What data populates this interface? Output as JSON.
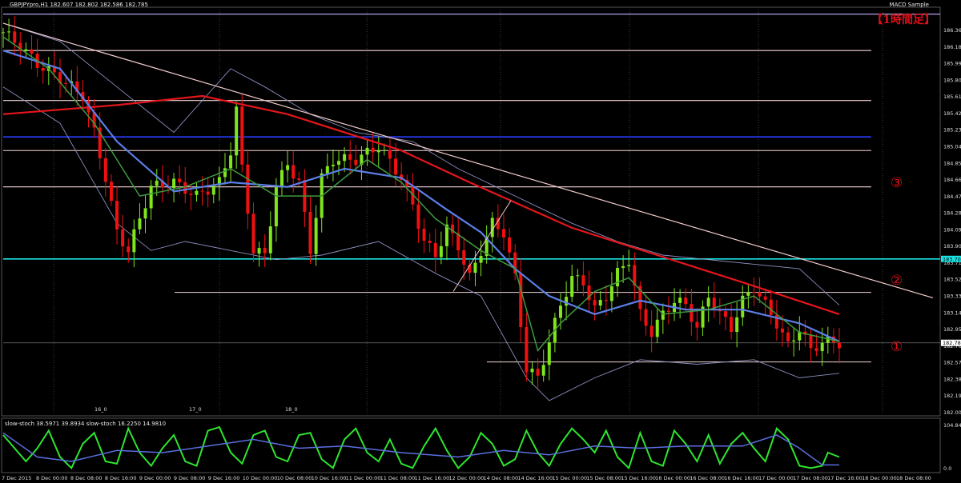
{
  "header": {
    "symbol_info": "GBPJPYpro,H1  182.607 182.802 182.586 182.785",
    "indicator_name": "MACD Sample",
    "timeframe_label": "【1時間足】",
    "stoch_info": "slow-stoch 38.5971 39.8934  slow-stoch 16.2250 14.9810"
  },
  "annotations": {
    "circle_1": "①",
    "circle_2": "②",
    "circle_3": "③"
  },
  "price_axis": {
    "ticks": [
      "186.360",
      "186.180",
      "185.990",
      "185.800",
      "185.610",
      "185.420",
      "185.230",
      "185.040",
      "184.850",
      "184.660",
      "184.470",
      "184.280",
      "184.090",
      "183.900",
      "183.710",
      "183.525",
      "183.335",
      "183.145",
      "182.955",
      "182.765",
      "182.575",
      "182.385",
      "182.195",
      "182.005"
    ],
    "current_price": "182.785",
    "cyan_level_label": "183.708",
    "ylim": [
      182.0,
      186.45
    ]
  },
  "time_axis": {
    "ticks": [
      "7 Dec 2015",
      "8 Dec 00:00",
      "8 Dec 08:00",
      "8 Dec 16:00",
      "9 Dec 00:00",
      "9 Dec 08:00",
      "9 Dec 16:00",
      "10 Dec 00:00",
      "10 Dec 08:00",
      "10 Dec 16:00",
      "11 Dec 00:00",
      "11 Dec 08:00",
      "11 Dec 16:00",
      "12 Dec 00:00",
      "14 Dec 08:00",
      "14 Dec 16:00",
      "15 Dec 00:00",
      "15 Dec 08:00",
      "15 Dec 16:00",
      "16 Dec 00:00",
      "16 Dec 08:00",
      "16 Dec 16:00",
      "17 Dec 00:00",
      "17 Dec 08:00",
      "17 Dec 16:00",
      "18 Dec 00:00",
      "18 Dec 08:00"
    ],
    "session_markers": [
      "16_0",
      "17_0",
      "18_0"
    ]
  },
  "stoch_axis": {
    "ticks": [
      "104.8427",
      "0.0"
    ]
  },
  "chart_data": {
    "type": "line",
    "candles_count": 148,
    "close_path": [
      [
        0,
        186.2
      ],
      [
        3,
        186.05
      ],
      [
        6,
        185.85
      ],
      [
        10,
        185.7
      ],
      [
        14,
        185.5
      ],
      [
        16,
        185.1
      ],
      [
        18,
        184.6
      ],
      [
        20,
        184.0
      ],
      [
        22,
        183.8
      ],
      [
        24,
        184.15
      ],
      [
        26,
        184.5
      ],
      [
        30,
        184.55
      ],
      [
        34,
        184.4
      ],
      [
        38,
        184.55
      ],
      [
        40,
        184.9
      ],
      [
        41,
        185.35
      ],
      [
        42,
        184.7
      ],
      [
        44,
        183.8
      ],
      [
        46,
        183.75
      ],
      [
        48,
        184.5
      ],
      [
        50,
        184.75
      ],
      [
        52,
        184.55
      ],
      [
        54,
        183.8
      ],
      [
        56,
        184.6
      ],
      [
        58,
        184.8
      ],
      [
        62,
        184.8
      ],
      [
        66,
        184.95
      ],
      [
        70,
        184.6
      ],
      [
        72,
        184.3
      ],
      [
        74,
        183.9
      ],
      [
        76,
        183.75
      ],
      [
        78,
        184.05
      ],
      [
        80,
        183.85
      ],
      [
        82,
        183.5
      ],
      [
        84,
        183.8
      ],
      [
        86,
        184.1
      ],
      [
        88,
        184.0
      ],
      [
        90,
        183.5
      ],
      [
        92,
        182.5
      ],
      [
        94,
        182.4
      ],
      [
        96,
        182.8
      ],
      [
        98,
        183.2
      ],
      [
        100,
        183.5
      ],
      [
        102,
        183.45
      ],
      [
        104,
        183.15
      ],
      [
        106,
        183.3
      ],
      [
        108,
        183.55
      ],
      [
        110,
        183.7
      ],
      [
        112,
        183.1
      ],
      [
        114,
        182.9
      ],
      [
        116,
        183.1
      ],
      [
        118,
        183.25
      ],
      [
        120,
        183.2
      ],
      [
        122,
        182.95
      ],
      [
        124,
        183.3
      ],
      [
        126,
        183.1
      ],
      [
        128,
        182.95
      ],
      [
        130,
        183.25
      ],
      [
        132,
        183.4
      ],
      [
        134,
        183.2
      ],
      [
        136,
        183.0
      ],
      [
        138,
        182.75
      ],
      [
        140,
        182.95
      ],
      [
        142,
        182.7
      ],
      [
        144,
        182.8
      ],
      [
        147,
        182.785
      ]
    ],
    "moving_averages": [
      {
        "color": "#e5161b",
        "points": [
          [
            0,
            185.3
          ],
          [
            20,
            185.4
          ],
          [
            35,
            185.5
          ],
          [
            50,
            185.3
          ],
          [
            70,
            184.9
          ],
          [
            82,
            184.55
          ],
          [
            100,
            184.05
          ],
          [
            115,
            183.75
          ],
          [
            130,
            183.45
          ],
          [
            147,
            183.1
          ]
        ]
      },
      {
        "color": "#5b7fe8",
        "points": [
          [
            0,
            186.0
          ],
          [
            10,
            185.8
          ],
          [
            20,
            185.0
          ],
          [
            30,
            184.45
          ],
          [
            40,
            184.55
          ],
          [
            50,
            184.5
          ],
          [
            60,
            184.7
          ],
          [
            70,
            184.6
          ],
          [
            78,
            184.25
          ],
          [
            84,
            184.0
          ],
          [
            90,
            183.6
          ],
          [
            96,
            183.3
          ],
          [
            104,
            183.1
          ],
          [
            112,
            183.25
          ],
          [
            120,
            183.15
          ],
          [
            130,
            183.15
          ],
          [
            140,
            183.0
          ],
          [
            147,
            182.8
          ]
        ]
      },
      {
        "color": "#3f9a3f",
        "points": [
          [
            0,
            186.15
          ],
          [
            8,
            185.8
          ],
          [
            16,
            185.2
          ],
          [
            24,
            184.4
          ],
          [
            32,
            184.5
          ],
          [
            40,
            184.7
          ],
          [
            48,
            184.4
          ],
          [
            56,
            184.4
          ],
          [
            64,
            184.8
          ],
          [
            70,
            184.55
          ],
          [
            76,
            184.15
          ],
          [
            84,
            183.8
          ],
          [
            90,
            183.6
          ],
          [
            94,
            182.7
          ],
          [
            98,
            183.0
          ],
          [
            104,
            183.35
          ],
          [
            110,
            183.5
          ],
          [
            116,
            183.1
          ],
          [
            124,
            183.15
          ],
          [
            132,
            183.3
          ],
          [
            140,
            182.9
          ],
          [
            147,
            182.8
          ]
        ]
      }
    ],
    "bollinger_upper": [
      [
        0,
        186.3
      ],
      [
        10,
        186.1
      ],
      [
        20,
        185.6
      ],
      [
        30,
        185.1
      ],
      [
        40,
        185.8
      ],
      [
        46,
        185.6
      ],
      [
        54,
        185.3
      ],
      [
        62,
        185.1
      ],
      [
        72,
        185.0
      ],
      [
        80,
        184.7
      ],
      [
        90,
        184.4
      ],
      [
        100,
        184.1
      ],
      [
        108,
        183.9
      ],
      [
        116,
        183.75
      ],
      [
        124,
        183.7
      ],
      [
        132,
        183.65
      ],
      [
        140,
        183.6
      ],
      [
        147,
        183.2
      ]
    ],
    "bollinger_lower": [
      [
        0,
        185.6
      ],
      [
        10,
        185.2
      ],
      [
        20,
        184.1
      ],
      [
        26,
        183.8
      ],
      [
        32,
        183.9
      ],
      [
        40,
        183.8
      ],
      [
        48,
        183.7
      ],
      [
        56,
        183.75
      ],
      [
        66,
        183.9
      ],
      [
        76,
        183.55
      ],
      [
        84,
        183.3
      ],
      [
        92,
        182.4
      ],
      [
        96,
        182.15
      ],
      [
        104,
        182.4
      ],
      [
        112,
        182.6
      ],
      [
        122,
        182.55
      ],
      [
        132,
        182.6
      ],
      [
        140,
        182.4
      ],
      [
        147,
        182.45
      ]
    ],
    "horizontal_levels": [
      {
        "price": 186.4,
        "color": "#c8b8ff"
      },
      {
        "price": 186.0,
        "color": "#f4d6d6"
      },
      {
        "price": 185.45,
        "color": "#f4d6d6"
      },
      {
        "price": 185.05,
        "color": "#2b3cff"
      },
      {
        "price": 184.9,
        "color": "#f4d6d6"
      },
      {
        "price": 184.5,
        "color": "#f4d6d6"
      },
      {
        "price": 183.708,
        "color": "#19e3e3"
      },
      {
        "price": 183.34,
        "color": "#f4d6d6"
      },
      {
        "price": 182.575,
        "color": "#f4d6d6"
      }
    ],
    "trendline": {
      "from": [
        0,
        186.3
      ],
      "to": [
        147,
        183.28
      ],
      "color": "#f1c9c9"
    },
    "stoch_fast": [
      [
        0,
        80
      ],
      [
        4,
        20
      ],
      [
        6,
        50
      ],
      [
        8,
        90
      ],
      [
        10,
        30
      ],
      [
        12,
        5
      ],
      [
        14,
        60
      ],
      [
        16,
        85
      ],
      [
        18,
        20
      ],
      [
        20,
        15
      ],
      [
        22,
        95
      ],
      [
        24,
        40
      ],
      [
        26,
        10
      ],
      [
        28,
        50
      ],
      [
        30,
        80
      ],
      [
        32,
        20
      ],
      [
        34,
        10
      ],
      [
        36,
        90
      ],
      [
        38,
        98
      ],
      [
        40,
        40
      ],
      [
        42,
        15
      ],
      [
        44,
        80
      ],
      [
        46,
        90
      ],
      [
        48,
        30
      ],
      [
        50,
        20
      ],
      [
        52,
        80
      ],
      [
        54,
        85
      ],
      [
        56,
        25
      ],
      [
        58,
        5
      ],
      [
        60,
        70
      ],
      [
        62,
        95
      ],
      [
        64,
        40
      ],
      [
        66,
        20
      ],
      [
        68,
        70
      ],
      [
        70,
        15
      ],
      [
        72,
        5
      ],
      [
        74,
        55
      ],
      [
        76,
        95
      ],
      [
        78,
        45
      ],
      [
        80,
        5
      ],
      [
        82,
        30
      ],
      [
        84,
        85
      ],
      [
        86,
        60
      ],
      [
        88,
        10
      ],
      [
        90,
        25
      ],
      [
        92,
        90
      ],
      [
        94,
        40
      ],
      [
        96,
        10
      ],
      [
        98,
        60
      ],
      [
        100,
        95
      ],
      [
        102,
        70
      ],
      [
        104,
        40
      ],
      [
        106,
        90
      ],
      [
        108,
        30
      ],
      [
        110,
        5
      ],
      [
        112,
        85
      ],
      [
        114,
        20
      ],
      [
        116,
        10
      ],
      [
        118,
        90
      ],
      [
        120,
        60
      ],
      [
        122,
        20
      ],
      [
        124,
        80
      ],
      [
        126,
        15
      ],
      [
        128,
        60
      ],
      [
        130,
        85
      ],
      [
        132,
        50
      ],
      [
        134,
        20
      ],
      [
        136,
        95
      ],
      [
        138,
        70
      ],
      [
        140,
        10
      ],
      [
        142,
        5
      ],
      [
        144,
        10
      ],
      [
        145,
        40
      ],
      [
        147,
        30
      ]
    ],
    "stoch_slow": [
      [
        0,
        85
      ],
      [
        6,
        30
      ],
      [
        12,
        20
      ],
      [
        20,
        45
      ],
      [
        28,
        40
      ],
      [
        36,
        55
      ],
      [
        44,
        70
      ],
      [
        52,
        50
      ],
      [
        60,
        55
      ],
      [
        70,
        40
      ],
      [
        80,
        30
      ],
      [
        88,
        45
      ],
      [
        96,
        35
      ],
      [
        104,
        55
      ],
      [
        112,
        50
      ],
      [
        120,
        55
      ],
      [
        130,
        55
      ],
      [
        136,
        80
      ],
      [
        140,
        50
      ],
      [
        144,
        12
      ],
      [
        147,
        12
      ]
    ]
  }
}
